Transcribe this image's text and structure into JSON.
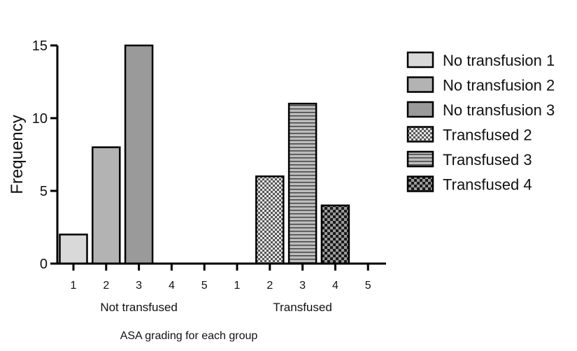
{
  "chart_data": {
    "type": "bar",
    "xlabel": "ASA grading for each group",
    "ylabel": "Frequency",
    "ylim": [
      0,
      15
    ],
    "yticks": [
      "0",
      "5",
      "10",
      "15"
    ],
    "groups": [
      {
        "name": "Not transfused",
        "categories": [
          "1",
          "2",
          "3",
          "4",
          "5"
        ]
      },
      {
        "name": "Transfused",
        "categories": [
          "1",
          "2",
          "3",
          "4",
          "5"
        ]
      }
    ],
    "series": [
      {
        "name": "No transfusion 1",
        "group": 0,
        "category": "1",
        "value": 2,
        "fill": "#d9d9d9",
        "pattern": "solid"
      },
      {
        "name": "No transfusion 2",
        "group": 0,
        "category": "2",
        "value": 8,
        "fill": "#b3b3b3",
        "pattern": "solid"
      },
      {
        "name": "No transfusion 3",
        "group": 0,
        "category": "3",
        "value": 15,
        "fill": "#9a9a9a",
        "pattern": "solid"
      },
      {
        "name": "Transfused 2",
        "group": 1,
        "category": "2",
        "value": 6,
        "fill": "#a0a0a0",
        "pattern": "check-fine"
      },
      {
        "name": "Transfused 3",
        "group": 1,
        "category": "3",
        "value": 11,
        "fill": "#999999",
        "pattern": "hlines"
      },
      {
        "name": "Transfused 4",
        "group": 1,
        "category": "4",
        "value": 4,
        "fill": "#333333",
        "pattern": "check-coarse"
      }
    ],
    "legend_position": "right",
    "grid": false
  }
}
